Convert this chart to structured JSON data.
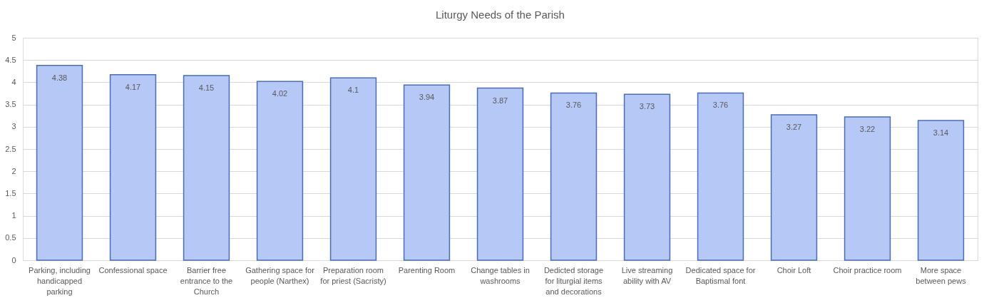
{
  "chart_data": {
    "type": "bar",
    "title": "Liturgy Needs of the Parish",
    "categories": [
      "Parking, including handicapped parking",
      "Confessional space",
      "Barrier free entrance to the Church",
      "Gathering space for people (Narthex)",
      "Preparation room for priest (Sacristy)",
      "Parenting Room",
      "Change tables in washrooms",
      "Dedicted storage for liturgial items and decorations",
      "Live streaming ability with AV",
      "Dedicated space for Baptismal font",
      "Choir Loft",
      "Choir practice room",
      "More space between pews"
    ],
    "values": [
      4.38,
      4.17,
      4.15,
      4.02,
      4.1,
      3.94,
      3.87,
      3.76,
      3.73,
      3.76,
      3.27,
      3.22,
      3.14
    ],
    "color": "#b6c8f6",
    "ylim": [
      0,
      5
    ],
    "yticks": [
      0,
      0.5,
      1,
      1.5,
      2,
      2.5,
      3,
      3.5,
      4,
      4.5,
      5
    ],
    "grid": "y",
    "data_labels": true
  }
}
